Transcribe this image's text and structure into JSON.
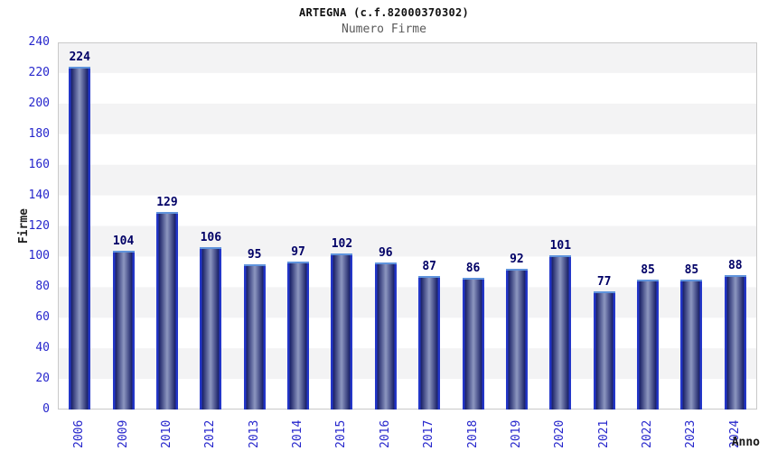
{
  "chart_data": {
    "type": "bar",
    "title": "ARTEGNA (c.f.82000370302)",
    "subtitle": "Numero Firme",
    "xlabel": "Anno",
    "ylabel": "Firme",
    "categories": [
      "2006",
      "2009",
      "2010",
      "2012",
      "2013",
      "2014",
      "2015",
      "2016",
      "2017",
      "2018",
      "2019",
      "2020",
      "2021",
      "2022",
      "2023",
      "2024"
    ],
    "values": [
      224,
      104,
      129,
      106,
      95,
      97,
      102,
      96,
      87,
      86,
      92,
      101,
      77,
      85,
      85,
      88
    ],
    "ylim": [
      0,
      240
    ],
    "ytick_step": 20,
    "yticks": [
      0,
      20,
      40,
      60,
      80,
      100,
      120,
      140,
      160,
      180,
      200,
      220,
      240
    ],
    "grid": "alternating-horizontal-bands",
    "legend": "none",
    "colors": {
      "axis_tick_labels": "#2626cc",
      "value_labels": "#000066",
      "bar_edge": "#2336c8",
      "bar_dark": "#1b2268",
      "bar_light": "#8d97c0",
      "bar_top_edge": "#5f93dc",
      "band_gray": "#f3f3f4",
      "plot_border": "#c9c9c9",
      "title_color": "#111111",
      "subtitle_color": "#5a5a5a"
    }
  }
}
